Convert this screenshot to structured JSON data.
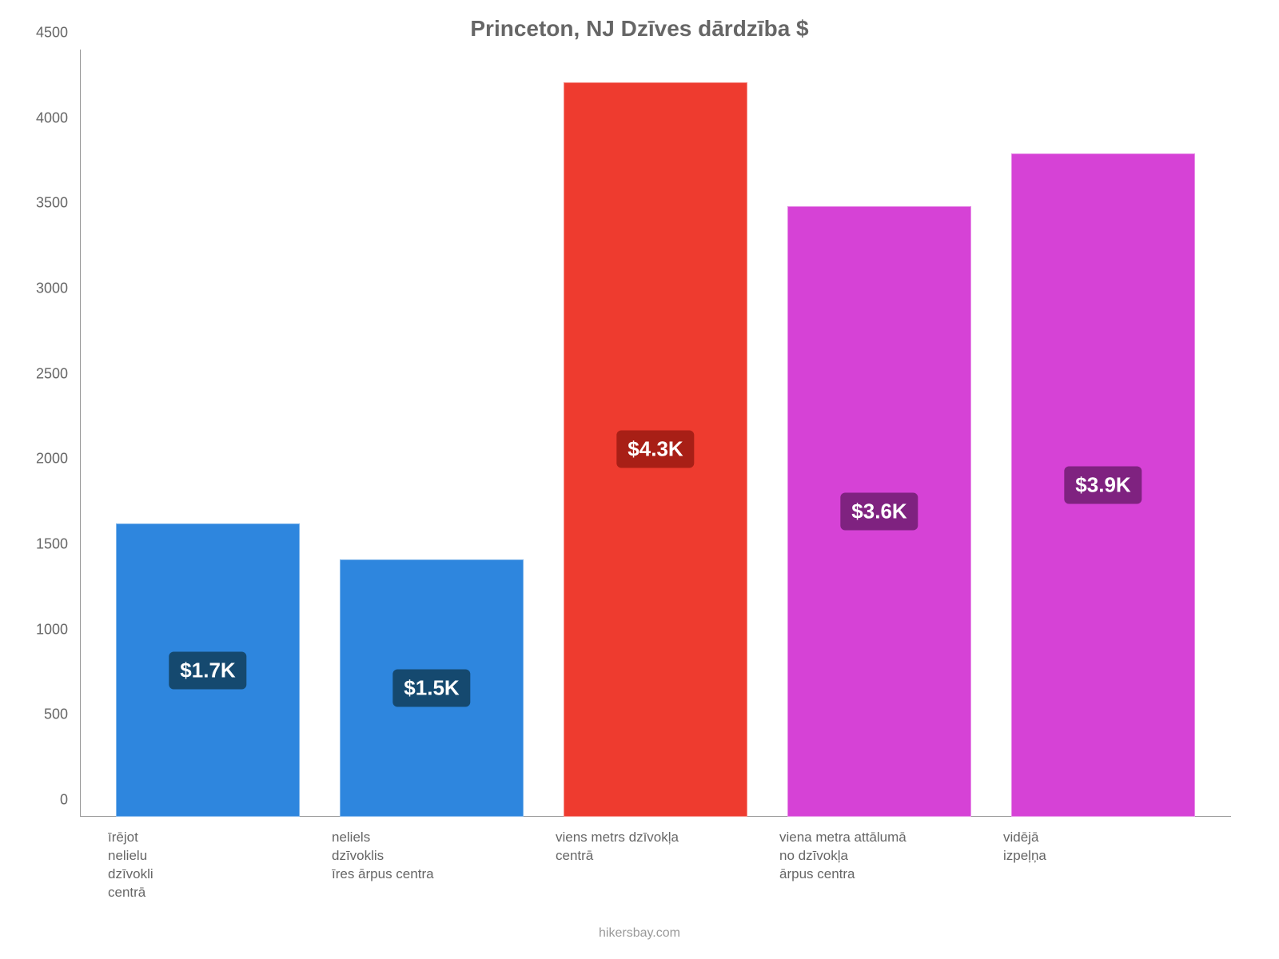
{
  "chart": {
    "type": "bar",
    "title": "Princeton, NJ Dzīves dārdzība $",
    "title_fontsize": 28,
    "title_color": "#666666",
    "background_color": "#ffffff",
    "axis_color": "#999999",
    "tick_font_color": "#666666",
    "tick_fontsize": 18,
    "xlabel_fontsize": 17,
    "xlabel_color": "#666666",
    "ylim": [
      0,
      4500
    ],
    "ytick_step": 500,
    "yticks": [
      "0",
      "500",
      "1000",
      "1500",
      "2000",
      "2500",
      "3000",
      "3500",
      "4000",
      "4500"
    ],
    "bar_width": 0.82,
    "categories": [
      "īrējot\nnelielu\ndzīvokli\ncentrā",
      "neliels\ndzīvoklis\nīres ārpus centra",
      "viens metrs dzīvokļa\ncentrā",
      "viena metra attālumā\nno dzīvokļa\nārpus centra",
      "vidējā\nizpeļņa"
    ],
    "values": [
      1720,
      1510,
      4310,
      3580,
      3890
    ],
    "value_labels": [
      "$1.7K",
      "$1.5K",
      "$4.3K",
      "$3.6K",
      "$3.9K"
    ],
    "bar_colors": [
      "#2e86de",
      "#2e86de",
      "#ee3b2f",
      "#d642d6",
      "#d642d6"
    ],
    "label_bg_colors": [
      "#15496f",
      "#15496f",
      "#a81f16",
      "#7f2280",
      "#7f2280"
    ],
    "label_font_color": "#ffffff",
    "label_fontsize": 26,
    "label_vertical_position": 0.5,
    "footer": "hikersbay.com",
    "footer_color": "#999999",
    "footer_fontsize": 16
  }
}
